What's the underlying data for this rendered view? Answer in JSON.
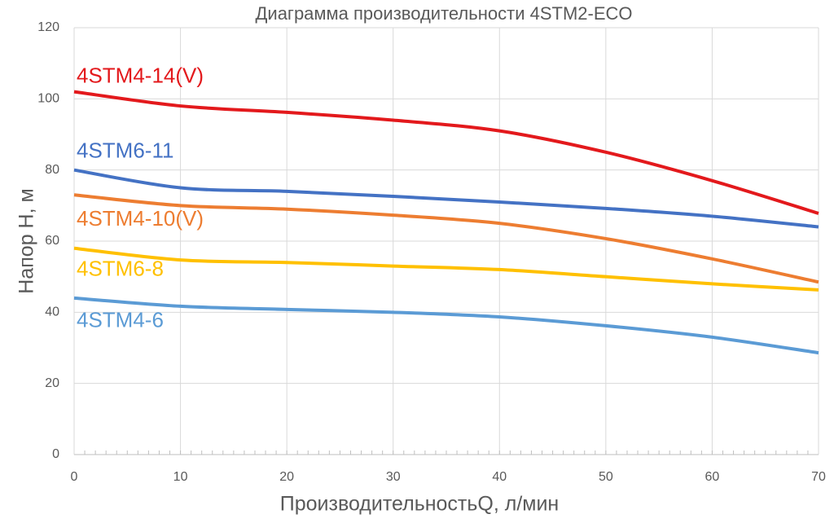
{
  "chart_data": {
    "type": "line",
    "title": "Диаграмма производительности 4STM2-ECO",
    "x_label": "ПроизводительностьQ, л/мин",
    "y_label": "Напор Н, м",
    "x": [
      0,
      10,
      20,
      30,
      40,
      50,
      60,
      70
    ],
    "series": [
      {
        "name": "4STM4-14(V)",
        "color": "#e3191c",
        "values": [
          102,
          98,
          96.2,
          94,
          91,
          85,
          77,
          67.8
        ]
      },
      {
        "name": "4STM6-11",
        "color": "#4472c4",
        "values": [
          80,
          75,
          74,
          72.6,
          71,
          69.2,
          67,
          64
        ]
      },
      {
        "name": "4STM4-10(V)",
        "color": "#ed7d31",
        "values": [
          73,
          70,
          69,
          67.3,
          65,
          60.7,
          55,
          48.5
        ]
      },
      {
        "name": "4STM6-8",
        "color": "#ffc000",
        "values": [
          58,
          54.7,
          54,
          53,
          52,
          50,
          48,
          46.3
        ]
      },
      {
        "name": "4STM4-6",
        "color": "#5b9bd5",
        "values": [
          44,
          41.7,
          40.8,
          40,
          38.7,
          36.2,
          33,
          28.6
        ]
      }
    ],
    "xlim": [
      0,
      70
    ],
    "xticks": [
      0,
      10,
      20,
      30,
      40,
      50,
      60,
      70
    ],
    "ylim": [
      0,
      120
    ],
    "yticks": [
      0,
      20,
      40,
      60,
      80,
      100,
      120
    ],
    "grid": true
  }
}
